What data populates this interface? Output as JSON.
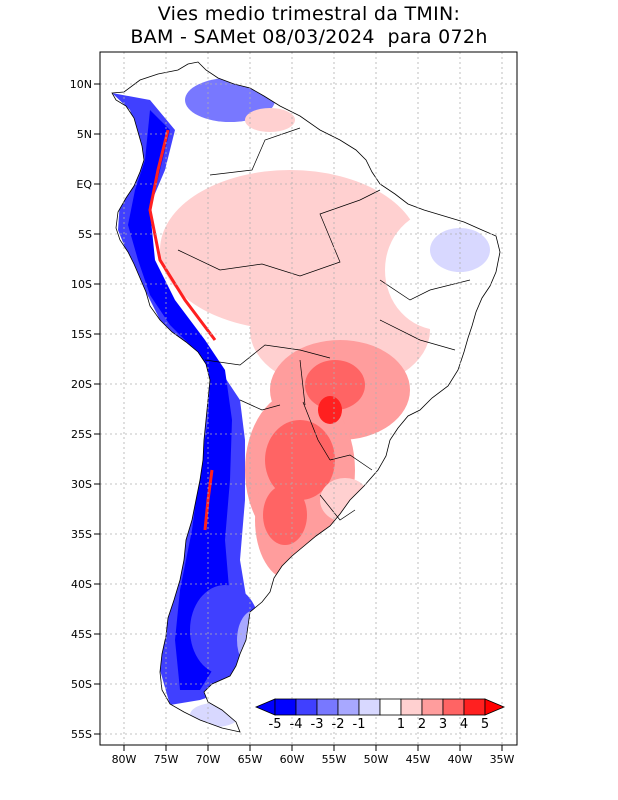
{
  "title": {
    "line1": "Vies medio trimestral da TMIN:",
    "line2": "BAM - SAMet 08/03/2024  para 072h"
  },
  "axes": {
    "lat_labels": [
      "10N",
      "5N",
      "EQ",
      "5S",
      "10S",
      "15S",
      "20S",
      "25S",
      "30S",
      "35S",
      "40S",
      "45S",
      "50S",
      "55S"
    ],
    "lon_labels": [
      "80W",
      "75W",
      "70W",
      "65W",
      "60W",
      "55W",
      "50W",
      "45W",
      "40W",
      "35W"
    ]
  },
  "colorbar": {
    "labels": [
      "-5",
      "-4",
      "-3",
      "-2",
      "-1",
      "1",
      "2",
      "3",
      "4",
      "5"
    ],
    "colors": [
      "#0000ff",
      "#4040ff",
      "#7878ff",
      "#a8a8ff",
      "#d8d8ff",
      "#ffffff",
      "#ffd0d0",
      "#ff9d9d",
      "#ff6464",
      "#ff2020"
    ],
    "under_color": "#0000ff",
    "over_color": "#ff0000"
  },
  "colors": {
    "frame": "#000000",
    "grid": "#b0b0b0",
    "ocean": "#ffffff",
    "border": "#000000"
  }
}
